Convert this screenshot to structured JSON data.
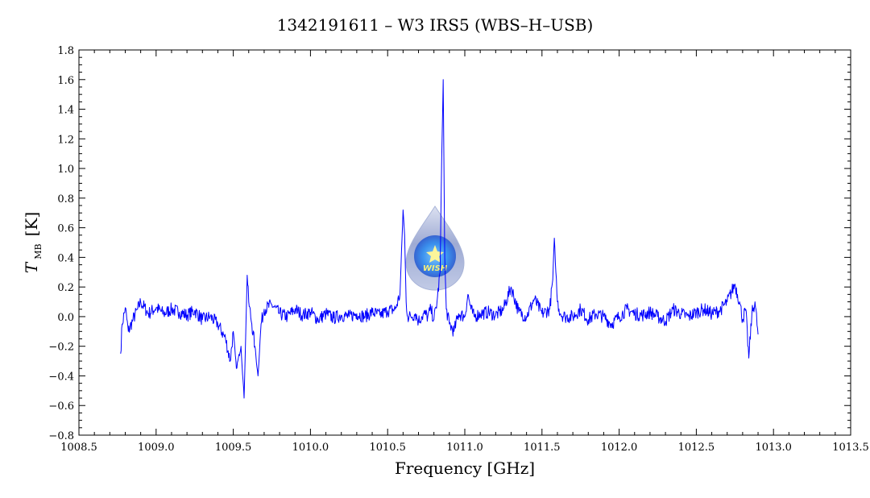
{
  "chart_data": {
    "type": "line",
    "title": "1342191611 – W3 IRS5 (WBS–H–USB)",
    "xlabel": "Frequency [GHz]",
    "ylabel_symbol": "T",
    "ylabel_subscript": "MB",
    "ylabel_unit": "[K]",
    "xlim": [
      1008.5,
      1013.5
    ],
    "ylim": [
      -0.8,
      1.8
    ],
    "x_ticks": [
      1008.5,
      1009.0,
      1009.5,
      1010.0,
      1010.5,
      1011.0,
      1011.5,
      1012.0,
      1012.5,
      1013.0,
      1013.5
    ],
    "x_tick_labels": [
      "1008.5",
      "1009.0",
      "1009.5",
      "1010.0",
      "1010.5",
      "1011.0",
      "1011.5",
      "1012.0",
      "1012.5",
      "1013.0",
      "1013.5"
    ],
    "y_ticks": [
      -0.8,
      -0.6,
      -0.4,
      -0.2,
      0.0,
      0.2,
      0.4,
      0.6,
      0.8,
      1.0,
      1.2,
      1.4,
      1.6,
      1.8
    ],
    "y_tick_labels": [
      "−0.8",
      "−0.6",
      "−0.4",
      "−0.2",
      "0.0",
      "0.2",
      "0.4",
      "0.6",
      "0.8",
      "1.0",
      "1.2",
      "1.4",
      "1.6",
      "1.8"
    ],
    "grid": false,
    "line_color": "#0000ff",
    "series": [
      {
        "x": [
          1008.77,
          1008.78,
          1008.8,
          1008.82,
          1008.85,
          1008.88,
          1008.9,
          1008.95,
          1009.0,
          1009.05,
          1009.1,
          1009.15,
          1009.2,
          1009.25,
          1009.3,
          1009.35,
          1009.4,
          1009.45,
          1009.48,
          1009.5,
          1009.52,
          1009.55,
          1009.57,
          1009.59,
          1009.6,
          1009.62,
          1009.64,
          1009.66,
          1009.68,
          1009.7,
          1009.75,
          1009.8,
          1009.85,
          1009.9,
          1009.95,
          1010.0,
          1010.05,
          1010.1,
          1010.15,
          1010.2,
          1010.25,
          1010.3,
          1010.35,
          1010.4,
          1010.45,
          1010.5,
          1010.55,
          1010.58,
          1010.6,
          1010.61,
          1010.62,
          1010.63,
          1010.65,
          1010.68,
          1010.7,
          1010.72,
          1010.74,
          1010.76,
          1010.78,
          1010.8,
          1010.82,
          1010.84,
          1010.85,
          1010.86,
          1010.87,
          1010.88,
          1010.9,
          1010.93,
          1010.96,
          1011.0,
          1011.02,
          1011.04,
          1011.06,
          1011.1,
          1011.15,
          1011.2,
          1011.25,
          1011.3,
          1011.35,
          1011.4,
          1011.45,
          1011.5,
          1011.55,
          1011.57,
          1011.58,
          1011.59,
          1011.6,
          1011.62,
          1011.65,
          1011.7,
          1011.75,
          1011.8,
          1011.85,
          1011.9,
          1011.95,
          1012.0,
          1012.05,
          1012.1,
          1012.15,
          1012.2,
          1012.25,
          1012.3,
          1012.35,
          1012.4,
          1012.45,
          1012.5,
          1012.55,
          1012.6,
          1012.65,
          1012.7,
          1012.75,
          1012.78,
          1012.8,
          1012.82,
          1012.84,
          1012.86,
          1012.88,
          1012.9
        ],
        "y": [
          -0.25,
          -0.05,
          0.06,
          -0.1,
          -0.02,
          0.05,
          0.1,
          0.02,
          0.06,
          0.02,
          0.05,
          0.03,
          0.01,
          0.04,
          -0.02,
          0.0,
          -0.05,
          -0.15,
          -0.3,
          -0.1,
          -0.35,
          -0.2,
          -0.55,
          0.28,
          0.1,
          -0.05,
          -0.2,
          -0.4,
          -0.05,
          0.05,
          0.08,
          0.02,
          0.0,
          0.05,
          0.01,
          0.03,
          -0.02,
          0.02,
          -0.01,
          0.01,
          0.0,
          0.02,
          0.0,
          0.03,
          0.01,
          0.04,
          0.05,
          0.15,
          0.72,
          0.55,
          0.1,
          0.0,
          0.0,
          0.02,
          -0.03,
          0.0,
          0.02,
          0.0,
          0.05,
          -0.02,
          0.1,
          0.3,
          1.05,
          1.6,
          0.4,
          0.05,
          -0.05,
          -0.1,
          0.02,
          0.0,
          0.15,
          0.05,
          0.0,
          0.02,
          0.03,
          0.01,
          0.05,
          0.2,
          0.03,
          0.0,
          0.12,
          0.02,
          0.05,
          0.25,
          0.53,
          0.3,
          0.1,
          0.02,
          0.0,
          0.0,
          0.05,
          -0.02,
          0.02,
          0.0,
          -0.05,
          0.0,
          0.05,
          0.02,
          0.01,
          0.03,
          0.0,
          -0.03,
          0.05,
          0.02,
          0.0,
          0.03,
          0.05,
          0.02,
          0.04,
          0.1,
          0.22,
          0.1,
          -0.02,
          0.05,
          -0.28,
          0.02,
          0.1,
          -0.12
        ]
      }
    ]
  },
  "logo": {
    "text": "WISH"
  }
}
